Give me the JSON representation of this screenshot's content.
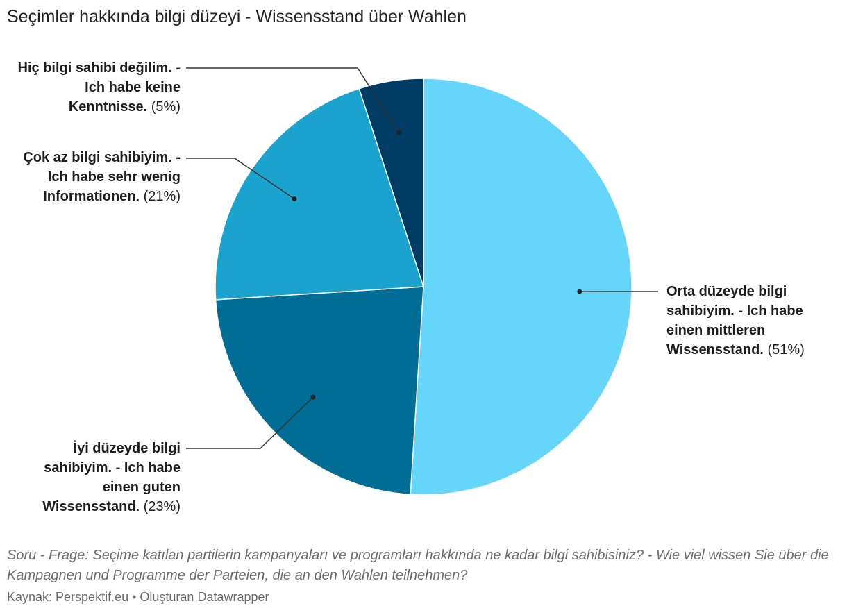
{
  "chart_data": {
    "type": "pie",
    "title": "Seçimler hakkında bilgi düzeyi - Wissensstand über Wahlen",
    "slices": [
      {
        "label": "Orta düzeyde bilgi sahibiyim. - Ich habe einen mittleren Wissensstand.",
        "value": 51,
        "value_text": "(51%)",
        "color": "#66d5fa"
      },
      {
        "label": "İyi düzeyde bilgi sahibiyim. - Ich habe einen guten Wissensstand.",
        "value": 23,
        "value_text": "(23%)",
        "color": "#006d96"
      },
      {
        "label": "Çok az bilgi sahibiyim. - Ich habe sehr wenig Informationen.",
        "value": 21,
        "value_text": "(21%)",
        "color": "#1ba3d0"
      },
      {
        "label": "Hiç bilgi sahibi değilim. - Ich habe keine Kenntnisse.",
        "value": 5,
        "value_text": "(5%)",
        "color": "#003c63"
      }
    ],
    "notes": "Soru - Frage: Seçime katılan partilerin kampanyaları ve programları hakkında ne kadar bilgi sahibisiniz? - Wie viel wissen Sie über die Kampagnen und Programme der Parteien, die an den Wahlen teilnehmen?",
    "source": "Kaynak: Perspektif.eu • Oluşturan Datawrapper"
  }
}
